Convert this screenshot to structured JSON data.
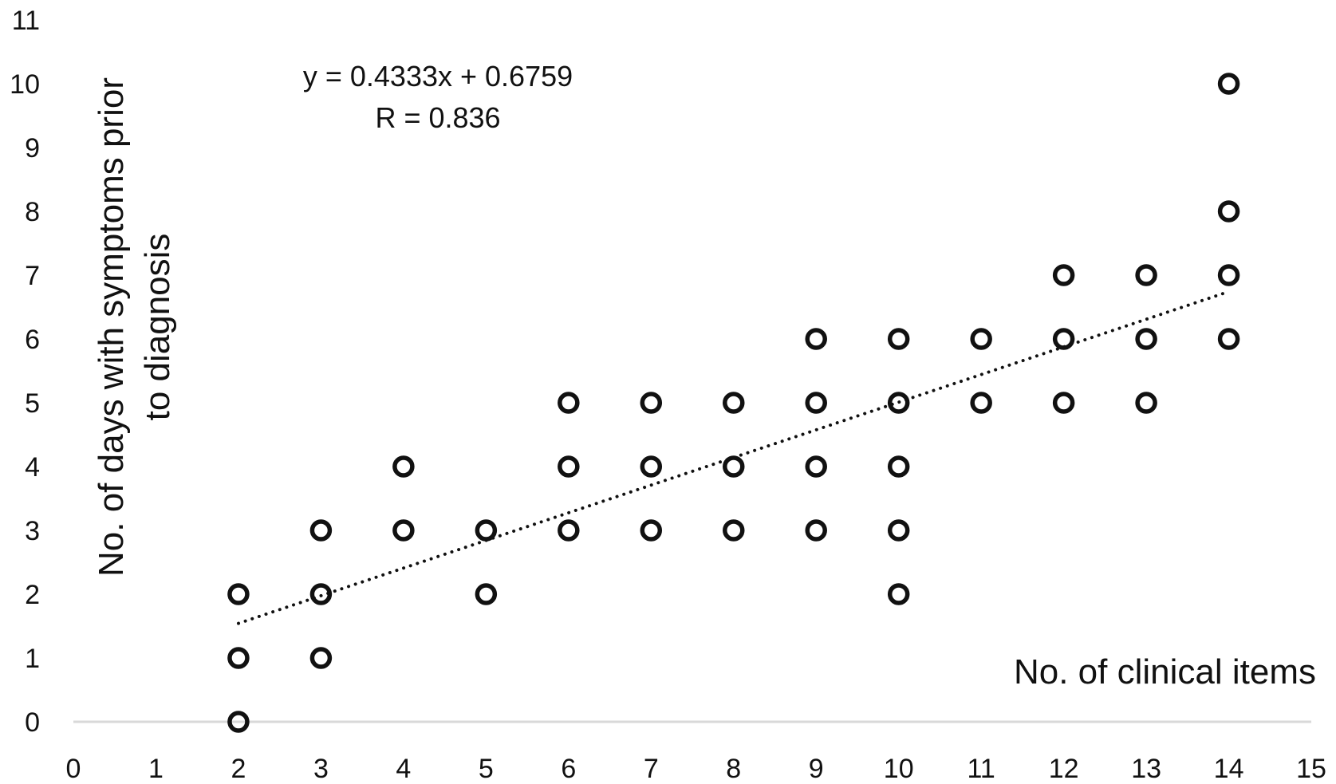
{
  "chart_data": {
    "type": "scatter",
    "xlabel": "No. of clinical items",
    "ylabel_lines": [
      "No. of days with symptoms prior",
      "to diagnosis"
    ],
    "xlim": [
      0,
      15
    ],
    "ylim": [
      0,
      11
    ],
    "x_ticks": [
      "0",
      "1",
      "2",
      "3",
      "4",
      "5",
      "6",
      "7",
      "8",
      "9",
      "10",
      "11",
      "12",
      "13",
      "14",
      "15"
    ],
    "y_ticks": [
      "0",
      "1",
      "2",
      "3",
      "4",
      "5",
      "6",
      "7",
      "8",
      "9",
      "10",
      "11"
    ],
    "grid": false,
    "marker": "open-circle",
    "points": [
      [
        2,
        0
      ],
      [
        2,
        1
      ],
      [
        2,
        2
      ],
      [
        3,
        1
      ],
      [
        3,
        2
      ],
      [
        3,
        3
      ],
      [
        4,
        3
      ],
      [
        4,
        4
      ],
      [
        5,
        2
      ],
      [
        5,
        3
      ],
      [
        6,
        3
      ],
      [
        6,
        4
      ],
      [
        6,
        5
      ],
      [
        7,
        3
      ],
      [
        7,
        4
      ],
      [
        7,
        5
      ],
      [
        8,
        3
      ],
      [
        8,
        4
      ],
      [
        8,
        5
      ],
      [
        9,
        3
      ],
      [
        9,
        4
      ],
      [
        9,
        5
      ],
      [
        9,
        6
      ],
      [
        10,
        2
      ],
      [
        10,
        3
      ],
      [
        10,
        4
      ],
      [
        10,
        5
      ],
      [
        10,
        6
      ],
      [
        11,
        5
      ],
      [
        11,
        6
      ],
      [
        12,
        5
      ],
      [
        12,
        6
      ],
      [
        12,
        7
      ],
      [
        13,
        5
      ],
      [
        13,
        6
      ],
      [
        13,
        7
      ],
      [
        14,
        6
      ],
      [
        14,
        7
      ],
      [
        14,
        8
      ],
      [
        14,
        10
      ]
    ],
    "trendline": {
      "style": "dotted",
      "slope": 0.4333,
      "intercept": 0.6759,
      "x_range": [
        2,
        14
      ],
      "equation": "y = 0.4333x + 0.6759",
      "r_label": "R = 0.836"
    }
  }
}
